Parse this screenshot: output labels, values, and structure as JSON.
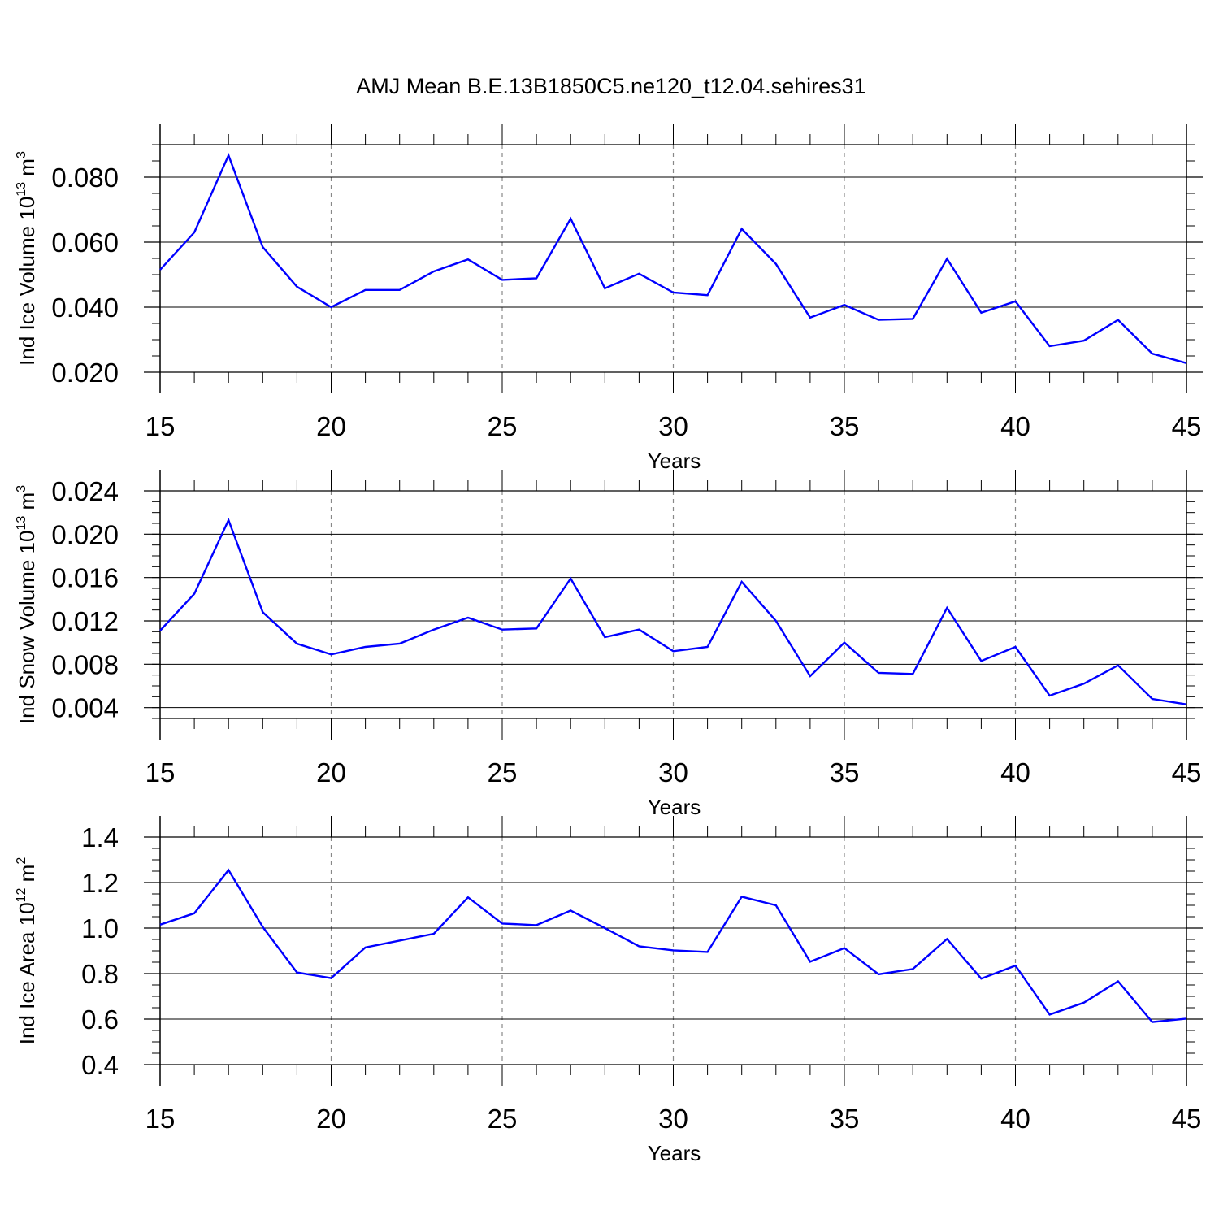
{
  "figure": {
    "title": "AMJ Mean B.E.13B1850C5.ne120_t12.04.sehires31"
  },
  "chart_data": [
    {
      "type": "line",
      "ylabel_main": "Ind Ice Volume 10",
      "ylabel_exp": "13",
      "ylabel_unit": " m",
      "ylabel_unit_exp": "3",
      "xlabel": "Years",
      "xlim": [
        15,
        45
      ],
      "ylim": [
        0.02,
        0.09
      ],
      "yticks": [
        0.02,
        0.04,
        0.06,
        0.08
      ],
      "ytick_labels": [
        "0.020",
        "0.040",
        "0.060",
        "0.080"
      ],
      "yminor_step": 0.005,
      "xticks": [
        15,
        20,
        25,
        30,
        35,
        40,
        45
      ],
      "xtick_labels": [
        "15",
        "20",
        "25",
        "30",
        "35",
        "40",
        "45"
      ],
      "gridlines_x": [
        20,
        25,
        30,
        35,
        40
      ],
      "line_color": "#0000ff",
      "series": [
        {
          "name": "Ind Ice Volume",
          "x": [
            15,
            16,
            17,
            18,
            19,
            20,
            21,
            22,
            23,
            24,
            25,
            26,
            27,
            28,
            29,
            30,
            31,
            32,
            33,
            34,
            35,
            36,
            37,
            38,
            39,
            40,
            41,
            42,
            43,
            44,
            45
          ],
          "values": [
            0.0515,
            0.063,
            0.0867,
            0.0585,
            0.0463,
            0.04,
            0.0453,
            0.0453,
            0.051,
            0.0547,
            0.0484,
            0.0489,
            0.0672,
            0.0458,
            0.0503,
            0.0445,
            0.0437,
            0.0641,
            0.0533,
            0.0368,
            0.0407,
            0.0361,
            0.0364,
            0.0549,
            0.0383,
            0.0418,
            0.028,
            0.0297,
            0.0361,
            0.0257,
            0.0228
          ]
        }
      ]
    },
    {
      "type": "line",
      "ylabel_main": "Ind Snow Volume 10",
      "ylabel_exp": "13",
      "ylabel_unit": " m",
      "ylabel_unit_exp": "3",
      "xlabel": "Years",
      "xlim": [
        15,
        45
      ],
      "ylim": [
        0.003,
        0.024
      ],
      "yticks": [
        0.004,
        0.008,
        0.012,
        0.016,
        0.02,
        0.024
      ],
      "ytick_labels": [
        "0.004",
        "0.008",
        "0.012",
        "0.016",
        "0.020",
        "0.024"
      ],
      "yminor_step": 0.001,
      "xticks": [
        15,
        20,
        25,
        30,
        35,
        40,
        45
      ],
      "xtick_labels": [
        "15",
        "20",
        "25",
        "30",
        "35",
        "40",
        "45"
      ],
      "gridlines_x": [
        20,
        25,
        30,
        35,
        40
      ],
      "line_color": "#0000ff",
      "series": [
        {
          "name": "Ind Snow Volume",
          "x": [
            15,
            16,
            17,
            18,
            19,
            20,
            21,
            22,
            23,
            24,
            25,
            26,
            27,
            28,
            29,
            30,
            31,
            32,
            33,
            34,
            35,
            36,
            37,
            38,
            39,
            40,
            41,
            42,
            43,
            44,
            45
          ],
          "values": [
            0.0111,
            0.0145,
            0.0213,
            0.0128,
            0.0099,
            0.0089,
            0.0096,
            0.0099,
            0.0112,
            0.0123,
            0.0112,
            0.0113,
            0.0159,
            0.0105,
            0.0112,
            0.0092,
            0.0096,
            0.0156,
            0.012,
            0.0069,
            0.01,
            0.0072,
            0.0071,
            0.0132,
            0.0083,
            0.0096,
            0.0051,
            0.0062,
            0.0079,
            0.0048,
            0.0043
          ]
        }
      ]
    },
    {
      "type": "line",
      "ylabel_main": "Ind Ice Area 10",
      "ylabel_exp": "12",
      "ylabel_unit": " m",
      "ylabel_unit_exp": "2",
      "xlabel": "Years",
      "xlim": [
        15,
        45
      ],
      "ylim": [
        0.4,
        1.4
      ],
      "yticks": [
        0.4,
        0.6,
        0.8,
        1.0,
        1.2,
        1.4
      ],
      "ytick_labels": [
        "0.4",
        "0.6",
        "0.8",
        "1.0",
        "1.2",
        "1.4"
      ],
      "yminor_step": 0.05,
      "xticks": [
        15,
        20,
        25,
        30,
        35,
        40,
        45
      ],
      "xtick_labels": [
        "15",
        "20",
        "25",
        "30",
        "35",
        "40",
        "45"
      ],
      "gridlines_x": [
        20,
        25,
        30,
        35,
        40
      ],
      "line_color": "#0000ff",
      "series": [
        {
          "name": "Ind Ice Area",
          "x": [
            15,
            16,
            17,
            18,
            19,
            20,
            21,
            22,
            23,
            24,
            25,
            26,
            27,
            28,
            29,
            30,
            31,
            32,
            33,
            34,
            35,
            36,
            37,
            38,
            39,
            40,
            41,
            42,
            43,
            44,
            45
          ],
          "values": [
            1.015,
            1.065,
            1.255,
            1.005,
            0.805,
            0.78,
            0.915,
            0.945,
            0.975,
            1.135,
            1.02,
            1.013,
            1.077,
            1.0,
            0.92,
            0.902,
            0.895,
            1.138,
            1.1,
            0.852,
            0.912,
            0.797,
            0.82,
            0.952,
            0.778,
            0.835,
            0.62,
            0.672,
            0.766,
            0.587,
            0.602
          ]
        }
      ]
    }
  ]
}
